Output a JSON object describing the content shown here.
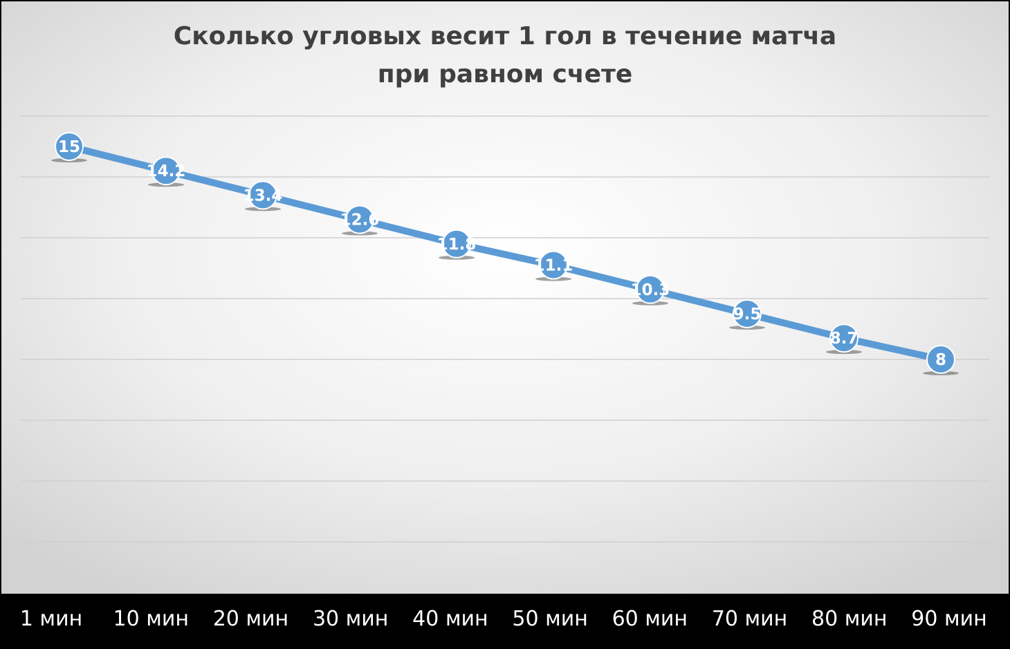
{
  "chart_data": {
    "type": "line",
    "title": "Сколько угловых весит 1 гол в течение матча при равном счете",
    "title_lines": [
      "Сколько угловых весит 1 гол в течение матча",
      "при равном счете"
    ],
    "categories": [
      "1 мин",
      "10 мин",
      "20 мин",
      "30 мин",
      "40 мин",
      "50 мин",
      "60 мин",
      "70 мин",
      "80 мин",
      "90 мин"
    ],
    "series": [
      {
        "values": [
          15,
          14.2,
          13.4,
          12.6,
          11.8,
          11.1,
          10.3,
          9.5,
          8.7,
          8
        ],
        "labels": [
          "15",
          "14.2",
          "13.4",
          "12.6",
          "11.8",
          "11.1",
          "10.3",
          "9.5",
          "8.7",
          "8"
        ],
        "color": "#5b9bd5"
      }
    ],
    "ylim": [
      0,
      16
    ],
    "grid": true,
    "legend": "none",
    "colors": {
      "line": "#5b9bd5",
      "axis_band": "#000000",
      "title": "#404040",
      "labels": "#ffffff"
    }
  }
}
